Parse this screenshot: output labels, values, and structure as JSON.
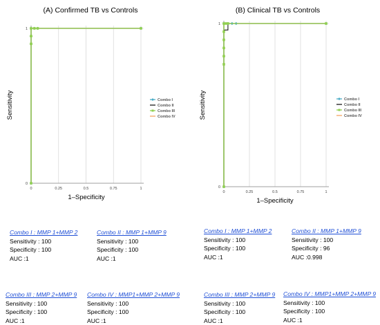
{
  "chart_data": [
    {
      "type": "line",
      "title": "(A) Confirmed TB vs Controls",
      "xlabel": "1–Specificity",
      "ylabel": "Sensitivity",
      "xlim": [
        0,
        1
      ],
      "ylim": [
        0,
        1
      ],
      "x_ticks": [
        "0",
        "0.25",
        "0.5",
        "0.75",
        "1"
      ],
      "y_ticks": [
        "0",
        "1"
      ],
      "grid": true,
      "legend_position": "right",
      "series": [
        {
          "name": "Combo I",
          "color": "#4bacc6",
          "marker": "diamond",
          "points": [
            [
              0,
              0
            ],
            [
              0,
              0.9
            ],
            [
              0,
              0.95
            ],
            [
              0,
              1
            ],
            [
              0.03,
              1
            ],
            [
              0.06,
              1
            ],
            [
              1,
              1
            ]
          ]
        },
        {
          "name": "Combo II",
          "color": "#1a1a1a",
          "marker": "none",
          "points": [
            [
              0,
              0
            ],
            [
              0,
              1
            ],
            [
              1,
              1
            ]
          ]
        },
        {
          "name": "Combo III",
          "color": "#92d050",
          "marker": "square",
          "points": [
            [
              0,
              0
            ],
            [
              0,
              0.9
            ],
            [
              0,
              0.95
            ],
            [
              0,
              1
            ],
            [
              0.03,
              1
            ],
            [
              0.06,
              1
            ],
            [
              1,
              1
            ]
          ]
        },
        {
          "name": "Combo IV",
          "color": "#f4a460",
          "marker": "none",
          "points": [
            [
              0,
              0
            ],
            [
              0,
              1
            ],
            [
              1,
              1
            ]
          ]
        }
      ]
    },
    {
      "type": "line",
      "title": "(B) Clinical TB vs Controls",
      "xlabel": "1–Specificity",
      "ylabel": "Sensitivity",
      "xlim": [
        0,
        1
      ],
      "ylim": [
        0,
        1
      ],
      "x_ticks": [
        "0",
        "0.25",
        "0.5",
        "0.75",
        "1"
      ],
      "y_ticks": [
        "0",
        "1"
      ],
      "grid": true,
      "legend_position": "right",
      "series": [
        {
          "name": "Combo I",
          "color": "#4bacc6",
          "marker": "diamond",
          "points": [
            [
              0,
              0
            ],
            [
              0,
              1
            ],
            [
              0.04,
              1
            ],
            [
              0.08,
              1
            ],
            [
              0.12,
              1
            ],
            [
              1,
              1
            ]
          ]
        },
        {
          "name": "Combo II",
          "color": "#1a1a1a",
          "marker": "none",
          "points": [
            [
              0,
              0
            ],
            [
              0,
              0.9
            ],
            [
              0,
              0.96
            ],
            [
              0.04,
              0.96
            ],
            [
              0.04,
              1
            ],
            [
              1,
              1
            ]
          ]
        },
        {
          "name": "Combo III",
          "color": "#92d050",
          "marker": "square",
          "points": [
            [
              0,
              0
            ],
            [
              0,
              0.75
            ],
            [
              0,
              0.8
            ],
            [
              0,
              0.85
            ],
            [
              0,
              0.9
            ],
            [
              0,
              0.95
            ],
            [
              0,
              1
            ],
            [
              0.02,
              1
            ],
            [
              0.04,
              1
            ],
            [
              1,
              1
            ]
          ]
        },
        {
          "name": "Combo IV",
          "color": "#f4a460",
          "marker": "none",
          "points": [
            [
              0,
              0
            ],
            [
              0,
              1
            ],
            [
              1,
              1
            ]
          ]
        }
      ]
    }
  ],
  "stats": {
    "A": [
      {
        "name": "Combo I : MMP 1+MMP 2",
        "sens": "Sensitivity : 100",
        "spec": "Specificity : 100",
        "auc": "AUC :1"
      },
      {
        "name": "Combo II : MMP 1+MMP 9",
        "sens": "Sensitivity : 100",
        "spec": "Specificity : 100",
        "auc": "AUC :1"
      },
      {
        "name": "Combo III : MMP 2+MMP 9",
        "sens": "Sensitivity : 100",
        "spec": "Specificity : 100",
        "auc": "AUC :1"
      },
      {
        "name": "Combo IV : MMP1+MMP 2+MMP 9",
        "sens": "Sensitivity : 100",
        "spec": "Specificity : 100",
        "auc": "AUC :1"
      }
    ],
    "B": [
      {
        "name": "Combo I : MMP 1+MMP 2",
        "sens": "Sensitivity : 100",
        "spec": "Specificity : 100",
        "auc": "AUC :1"
      },
      {
        "name": "Combo II : MMP 1+MMP 9",
        "sens": "Sensitivity : 100",
        "spec": "Specificity : 96",
        "auc": "AUC :0.998"
      },
      {
        "name": "Combo III : MMP 2+MMP 9",
        "sens": "Sensitivity : 100",
        "spec": "Specificity : 100",
        "auc": "AUC :1"
      },
      {
        "name": "Combo IV : MMP1+MMP 2+MMP 9",
        "sens": "Sensitivity : 100",
        "spec": "Specificity : 100",
        "auc": "AUC :1"
      }
    ]
  }
}
